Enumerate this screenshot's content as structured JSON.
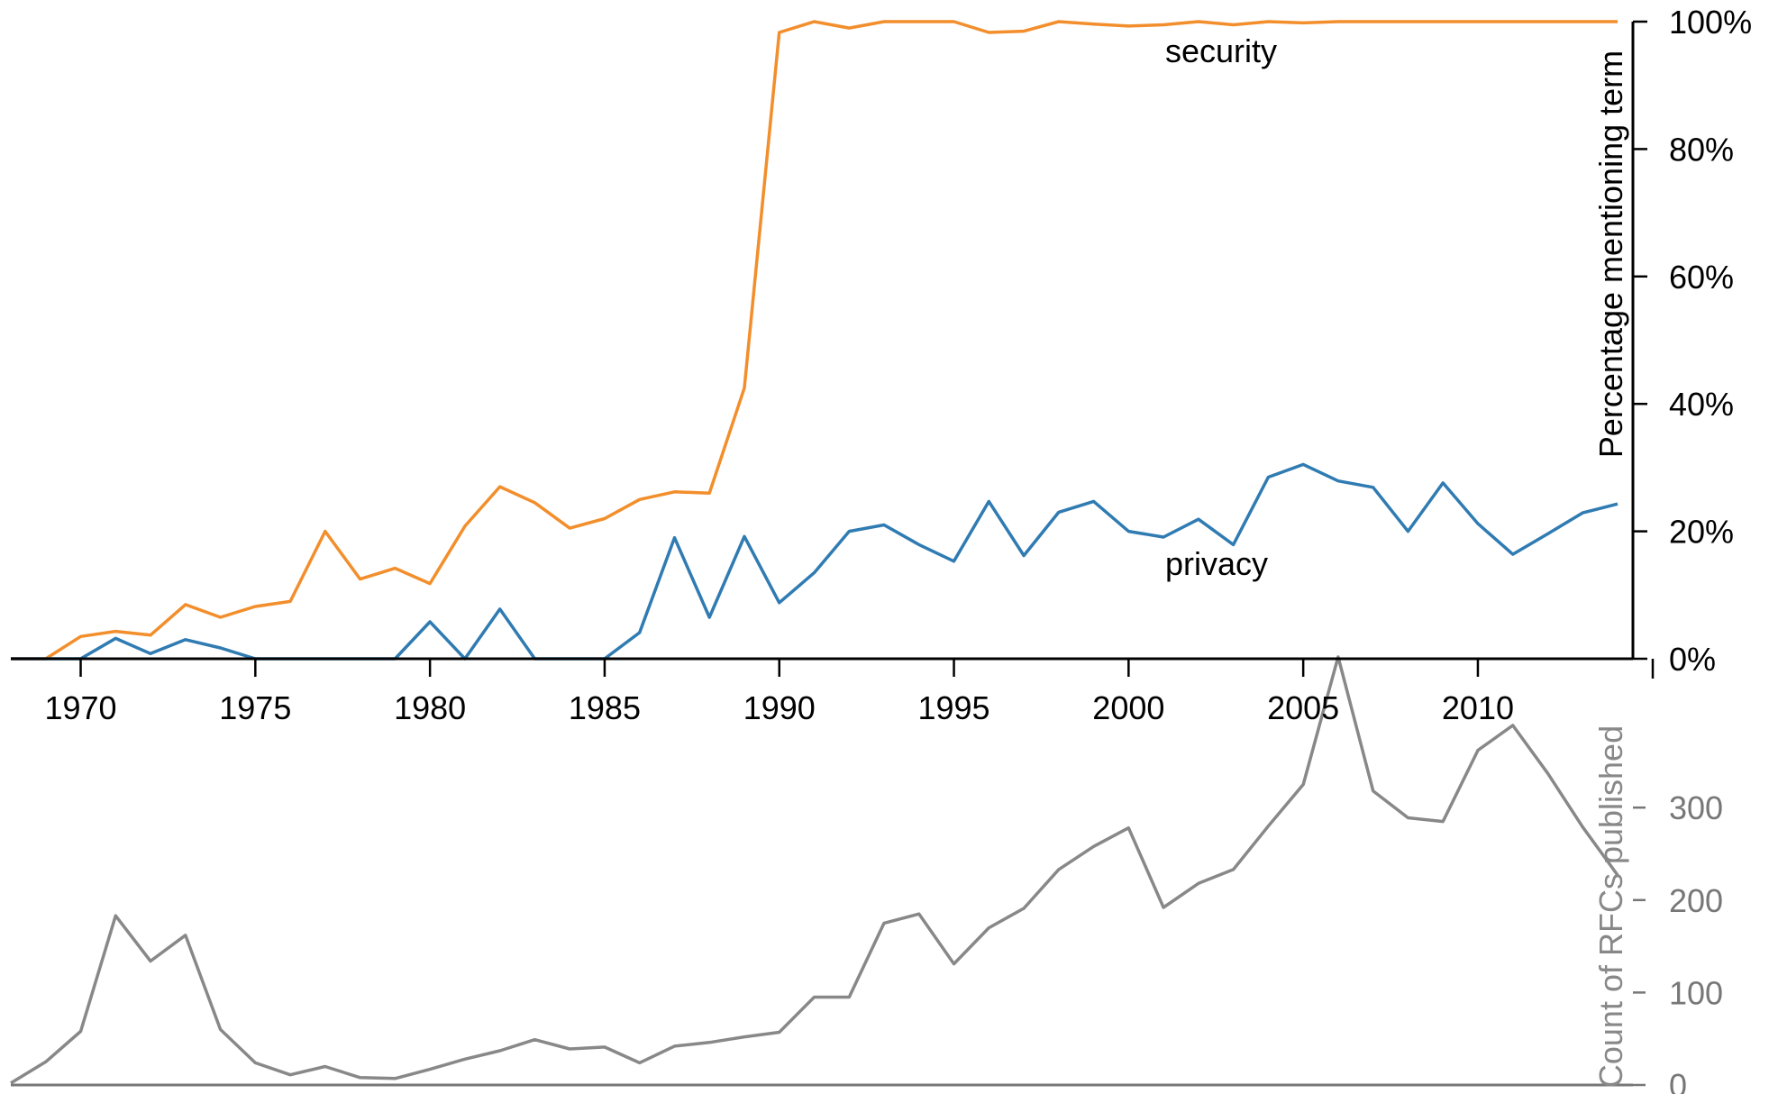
{
  "chart_data": [
    {
      "type": "line",
      "xlabel": "",
      "ylabel": "Percentage mentioning term",
      "xlim": [
        1968,
        2014
      ],
      "ylim": [
        0,
        100
      ],
      "x_ticks": [
        1970,
        1975,
        1980,
        1985,
        1990,
        1995,
        2000,
        2005,
        2010
      ],
      "y_ticks": [
        "0%",
        "20%",
        "40%",
        "60%",
        "80%",
        "100%"
      ],
      "y_tick_values": [
        0,
        20,
        40,
        60,
        80,
        100
      ],
      "y_axis_position": "right",
      "series": [
        {
          "name": "security",
          "color": "#f28e2b",
          "x": [
            1968,
            1969,
            1970,
            1971,
            1972,
            1973,
            1974,
            1975,
            1976,
            1977,
            1978,
            1979,
            1980,
            1981,
            1982,
            1983,
            1984,
            1985,
            1986,
            1987,
            1988,
            1989,
            1990,
            1991,
            1992,
            1993,
            1994,
            1995,
            1996,
            1997,
            1998,
            1999,
            2000,
            2001,
            2002,
            2003,
            2004,
            2005,
            2006,
            2007,
            2008,
            2009,
            2010,
            2011,
            2012,
            2013,
            2014
          ],
          "values": [
            0,
            0,
            3.5,
            4.3,
            3.7,
            8.5,
            6.5,
            8.2,
            9,
            20,
            12.5,
            14.2,
            11.8,
            20.8,
            27,
            24.5,
            20.5,
            22,
            25,
            26.2,
            26,
            42.5,
            98.3,
            100,
            99,
            100,
            100,
            100,
            98.3,
            98.5,
            100,
            99.6,
            99.3,
            99.5,
            100,
            99.5,
            100,
            99.8,
            100,
            100,
            100,
            100,
            100,
            100,
            100,
            100,
            100
          ]
        },
        {
          "name": "privacy",
          "color": "#2f7bb2",
          "x": [
            1968,
            1969,
            1970,
            1971,
            1972,
            1973,
            1974,
            1975,
            1976,
            1977,
            1978,
            1979,
            1980,
            1981,
            1982,
            1983,
            1984,
            1985,
            1986,
            1987,
            1988,
            1989,
            1990,
            1991,
            1992,
            1993,
            1994,
            1995,
            1996,
            1997,
            1998,
            1999,
            2000,
            2001,
            2002,
            2003,
            2004,
            2005,
            2006,
            2007,
            2008,
            2009,
            2010,
            2011,
            2012,
            2013,
            2014
          ],
          "values": [
            0,
            0,
            0,
            3.2,
            0.8,
            3,
            1.7,
            0,
            0,
            0,
            0,
            0,
            5.8,
            0,
            7.8,
            0,
            0,
            0,
            4.1,
            19,
            6.5,
            19.2,
            8.8,
            13.5,
            20,
            21,
            17.9,
            15.3,
            24.7,
            16.2,
            23,
            24.7,
            20,
            19.1,
            21.9,
            17.9,
            28.5,
            30.5,
            27.9,
            26.9,
            20,
            27.6,
            21.2,
            16.4,
            19.6,
            22.9,
            24.3
          ]
        }
      ]
    },
    {
      "type": "area",
      "xlabel": "",
      "ylabel": "Count of RFCs published",
      "xlim": [
        1968,
        2014
      ],
      "ylim": [
        0,
        460
      ],
      "y_ticks": [
        "0",
        "100",
        "200",
        "300"
      ],
      "y_tick_values": [
        0,
        100,
        200,
        300
      ],
      "y_axis_position": "right",
      "series": [
        {
          "name": "",
          "color": "#888888",
          "x": [
            1968,
            1969,
            1970,
            1971,
            1972,
            1973,
            1974,
            1975,
            1976,
            1977,
            1978,
            1979,
            1980,
            1981,
            1982,
            1983,
            1984,
            1985,
            1986,
            1987,
            1988,
            1989,
            1990,
            1991,
            1992,
            1993,
            1994,
            1995,
            1996,
            1997,
            1998,
            1999,
            2000,
            2001,
            2002,
            2003,
            2004,
            2005,
            2006,
            2007,
            2008,
            2009,
            2010,
            2011,
            2012,
            2013,
            2014
          ],
          "values": [
            2,
            25,
            58,
            183,
            134,
            162,
            60,
            24,
            11,
            20,
            8,
            7,
            17,
            28,
            37,
            49,
            39,
            41,
            24,
            42,
            46,
            52,
            57,
            95,
            95,
            175,
            185,
            131,
            170,
            191,
            233,
            258,
            278,
            192,
            218,
            233,
            280,
            325,
            463,
            318,
            289,
            285,
            362,
            389,
            337,
            279,
            227
          ]
        }
      ]
    }
  ]
}
